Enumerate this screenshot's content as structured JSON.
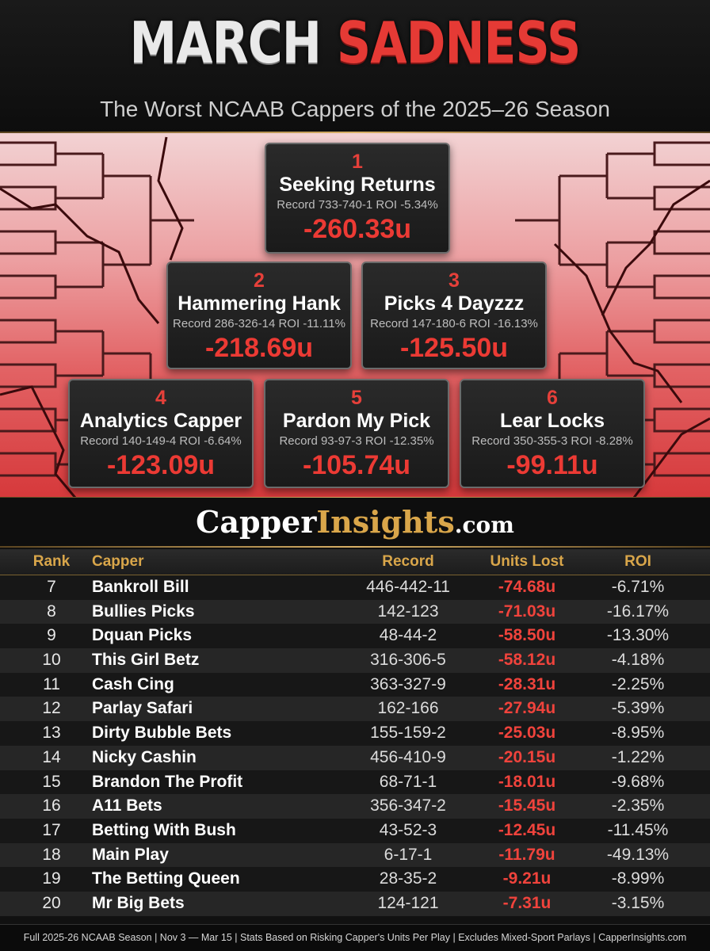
{
  "header": {
    "title_word1": "MARCH",
    "title_word2": "SADNESS",
    "subtitle": "The Worst NCAAB Cappers of the 2025–26 Season"
  },
  "top_cappers": [
    {
      "rank": "1",
      "name": "Seeking Returns",
      "stats": "Record 733-740-1   ROI -5.34%",
      "units": "-260.33u"
    },
    {
      "rank": "2",
      "name": "Hammering Hank",
      "stats": "Record 286-326-14   ROI -11.11%",
      "units": "-218.69u"
    },
    {
      "rank": "3",
      "name": "Picks 4 Dayzzz",
      "stats": "Record 147-180-6   ROI -16.13%",
      "units": "-125.50u"
    },
    {
      "rank": "4",
      "name": "Analytics Capper",
      "stats": "Record 140-149-4   ROI -6.64%",
      "units": "-123.09u"
    },
    {
      "rank": "5",
      "name": "Pardon My Pick",
      "stats": "Record 93-97-3   ROI -12.35%",
      "units": "-105.74u"
    },
    {
      "rank": "6",
      "name": "Lear Locks",
      "stats": "Record 350-355-3   ROI -8.28%",
      "units": "-99.11u"
    }
  ],
  "brand": {
    "part1": "Capper",
    "part2": "Insights",
    "part3": ".com"
  },
  "table": {
    "headers": {
      "rank": "Rank",
      "capper": "Capper",
      "record": "Record",
      "units": "Units Lost",
      "roi": "ROI"
    },
    "rows": [
      {
        "rank": "7",
        "capper": "Bankroll Bill",
        "record": "446-442-11",
        "units": "-74.68u",
        "roi": "-6.71%"
      },
      {
        "rank": "8",
        "capper": "Bullies Picks",
        "record": "142-123",
        "units": "-71.03u",
        "roi": "-16.17%"
      },
      {
        "rank": "9",
        "capper": "Dquan Picks",
        "record": "48-44-2",
        "units": "-58.50u",
        "roi": "-13.30%"
      },
      {
        "rank": "10",
        "capper": "This Girl Betz",
        "record": "316-306-5",
        "units": "-58.12u",
        "roi": "-4.18%"
      },
      {
        "rank": "11",
        "capper": "Cash Cing",
        "record": "363-327-9",
        "units": "-28.31u",
        "roi": "-2.25%"
      },
      {
        "rank": "12",
        "capper": "Parlay Safari",
        "record": "162-166",
        "units": "-27.94u",
        "roi": "-5.39%"
      },
      {
        "rank": "13",
        "capper": "Dirty Bubble Bets",
        "record": "155-159-2",
        "units": "-25.03u",
        "roi": "-8.95%"
      },
      {
        "rank": "14",
        "capper": "Nicky Cashin",
        "record": "456-410-9",
        "units": "-20.15u",
        "roi": "-1.22%"
      },
      {
        "rank": "15",
        "capper": "Brandon The Profit",
        "record": "68-71-1",
        "units": "-18.01u",
        "roi": "-9.68%"
      },
      {
        "rank": "16",
        "capper": "A11 Bets",
        "record": "356-347-2",
        "units": "-15.45u",
        "roi": "-2.35%"
      },
      {
        "rank": "17",
        "capper": "Betting With Bush",
        "record": "43-52-3",
        "units": "-12.45u",
        "roi": "-11.45%"
      },
      {
        "rank": "18",
        "capper": "Main Play",
        "record": "6-17-1",
        "units": "-11.79u",
        "roi": "-49.13%"
      },
      {
        "rank": "19",
        "capper": "The Betting Queen",
        "record": "28-35-2",
        "units": "-9.21u",
        "roi": "-8.99%"
      },
      {
        "rank": "20",
        "capper": "Mr Big Bets",
        "record": "124-121",
        "units": "-7.31u",
        "roi": "-3.15%"
      }
    ]
  },
  "footer": "Full 2025-26 NCAAB Season | Nov 3 — Mar 15 | Stats Based on Risking Capper's Units Per Play | Excludes Mixed-Sport Parlays | CapperInsights.com",
  "colors": {
    "accent_red": "#e53a35",
    "gold": "#d9a64a",
    "background": "#111111"
  }
}
